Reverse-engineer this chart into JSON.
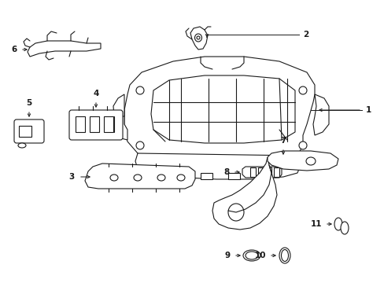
{
  "background_color": "#ffffff",
  "line_color": "#1a1a1a",
  "figsize": [
    4.89,
    3.6
  ],
  "dpi": 100,
  "label_color": "#000000",
  "label_fontsize": 7.5
}
